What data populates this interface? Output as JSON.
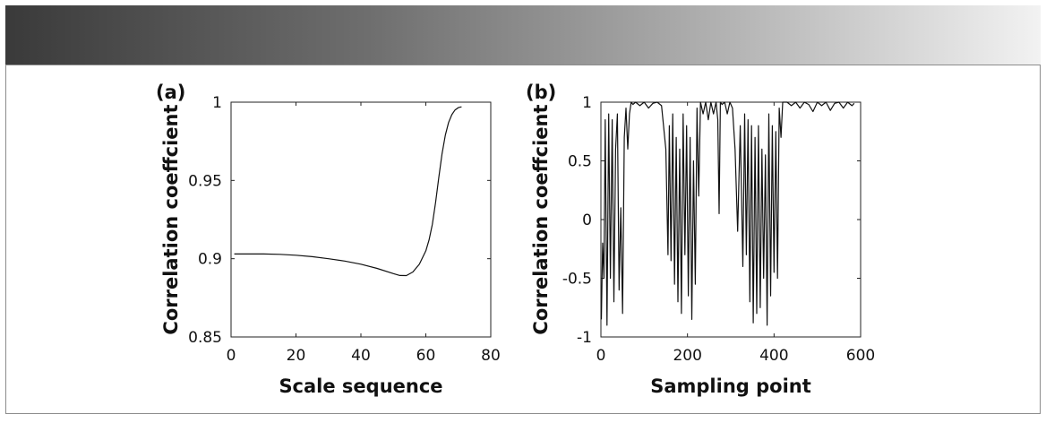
{
  "chart_data": [
    {
      "type": "line",
      "panel_label": "(a)",
      "xlabel": "Scale sequence",
      "ylabel": "Correlation coeffcient",
      "xlim": [
        0,
        80
      ],
      "ylim": [
        0.85,
        1.0
      ],
      "xticks": [
        0,
        20,
        40,
        60,
        80
      ],
      "yticks": [
        0.85,
        0.9,
        0.95,
        1
      ],
      "xtick_labels": [
        "0",
        "20",
        "40",
        "60",
        "80"
      ],
      "ytick_labels": [
        "0.85",
        "0.9",
        "0.95",
        "1"
      ],
      "grid": false,
      "series": [
        {
          "x": [
            1,
            5,
            10,
            15,
            20,
            25,
            30,
            35,
            40,
            45,
            50,
            52,
            54,
            56,
            58,
            60,
            61,
            62,
            63,
            64,
            65,
            66,
            67,
            68,
            69,
            70,
            71
          ],
          "y": [
            0.903,
            0.903,
            0.903,
            0.9028,
            0.9022,
            0.9013,
            0.9,
            0.8985,
            0.8965,
            0.8938,
            0.8905,
            0.8893,
            0.8892,
            0.8915,
            0.8965,
            0.905,
            0.912,
            0.922,
            0.936,
            0.952,
            0.967,
            0.979,
            0.987,
            0.992,
            0.995,
            0.9965,
            0.997
          ]
        }
      ]
    },
    {
      "type": "line",
      "panel_label": "(b)",
      "xlabel": "Sampling point",
      "ylabel": "Correlation coeffcient",
      "xlim": [
        0,
        600
      ],
      "ylim": [
        -1,
        1
      ],
      "xticks": [
        0,
        200,
        400,
        600
      ],
      "yticks": [
        -1,
        -0.5,
        0,
        0.5,
        1
      ],
      "xtick_labels": [
        "0",
        "200",
        "400",
        "600"
      ],
      "ytick_labels": [
        "-1",
        "-0.5",
        "0",
        "0.5",
        "1"
      ],
      "grid": false,
      "series": [
        {
          "x": [
            1,
            4,
            7,
            10,
            14,
            18,
            22,
            26,
            30,
            34,
            38,
            42,
            46,
            50,
            54,
            58,
            62,
            66,
            70,
            74,
            80,
            90,
            100,
            110,
            120,
            130,
            140,
            150,
            155,
            158,
            162,
            166,
            170,
            174,
            178,
            182,
            186,
            190,
            194,
            198,
            202,
            206,
            210,
            214,
            218,
            222,
            226,
            230,
            236,
            242,
            248,
            254,
            260,
            266,
            270,
            273,
            276,
            280,
            286,
            292,
            298,
            304,
            310,
            316,
            322,
            328,
            332,
            336,
            340,
            344,
            348,
            352,
            356,
            360,
            364,
            368,
            372,
            376,
            380,
            384,
            388,
            392,
            396,
            400,
            404,
            408,
            412,
            416,
            420,
            430,
            440,
            450,
            460,
            470,
            480,
            490,
            500,
            510,
            520,
            530,
            540,
            550,
            560,
            570,
            580,
            585
          ],
          "y": [
            -0.85,
            -0.2,
            -0.5,
            0.85,
            -0.9,
            0.9,
            -0.5,
            0.85,
            -0.7,
            0.6,
            0.9,
            -0.6,
            0.1,
            -0.8,
            0.7,
            0.95,
            0.6,
            0.9,
            1.0,
            0.98,
            1.0,
            0.97,
            1.0,
            0.95,
            0.99,
            1.0,
            0.97,
            0.6,
            -0.3,
            0.8,
            -0.35,
            0.9,
            -0.55,
            0.7,
            -0.7,
            0.6,
            -0.8,
            0.9,
            -0.3,
            0.8,
            -0.65,
            0.7,
            -0.85,
            0.5,
            -0.55,
            0.95,
            0.2,
            1.0,
            0.9,
            1.0,
            0.85,
            1.0,
            0.9,
            1.0,
            0.85,
            0.05,
            1.0,
            0.98,
            1.0,
            0.9,
            1.0,
            0.95,
            0.6,
            -0.1,
            0.8,
            -0.4,
            0.9,
            -0.3,
            0.85,
            -0.7,
            0.8,
            -0.88,
            0.7,
            -0.8,
            0.8,
            -0.75,
            0.6,
            -0.5,
            0.55,
            -0.9,
            0.9,
            -0.65,
            0.8,
            -0.45,
            0.75,
            -0.5,
            0.95,
            0.7,
            1.0,
            1.0,
            0.97,
            1.0,
            0.95,
            1.0,
            0.98,
            0.92,
            1.0,
            0.97,
            1.0,
            0.93,
            0.99,
            1.0,
            0.95,
            1.0,
            0.97,
            0.99
          ]
        }
      ]
    }
  ]
}
